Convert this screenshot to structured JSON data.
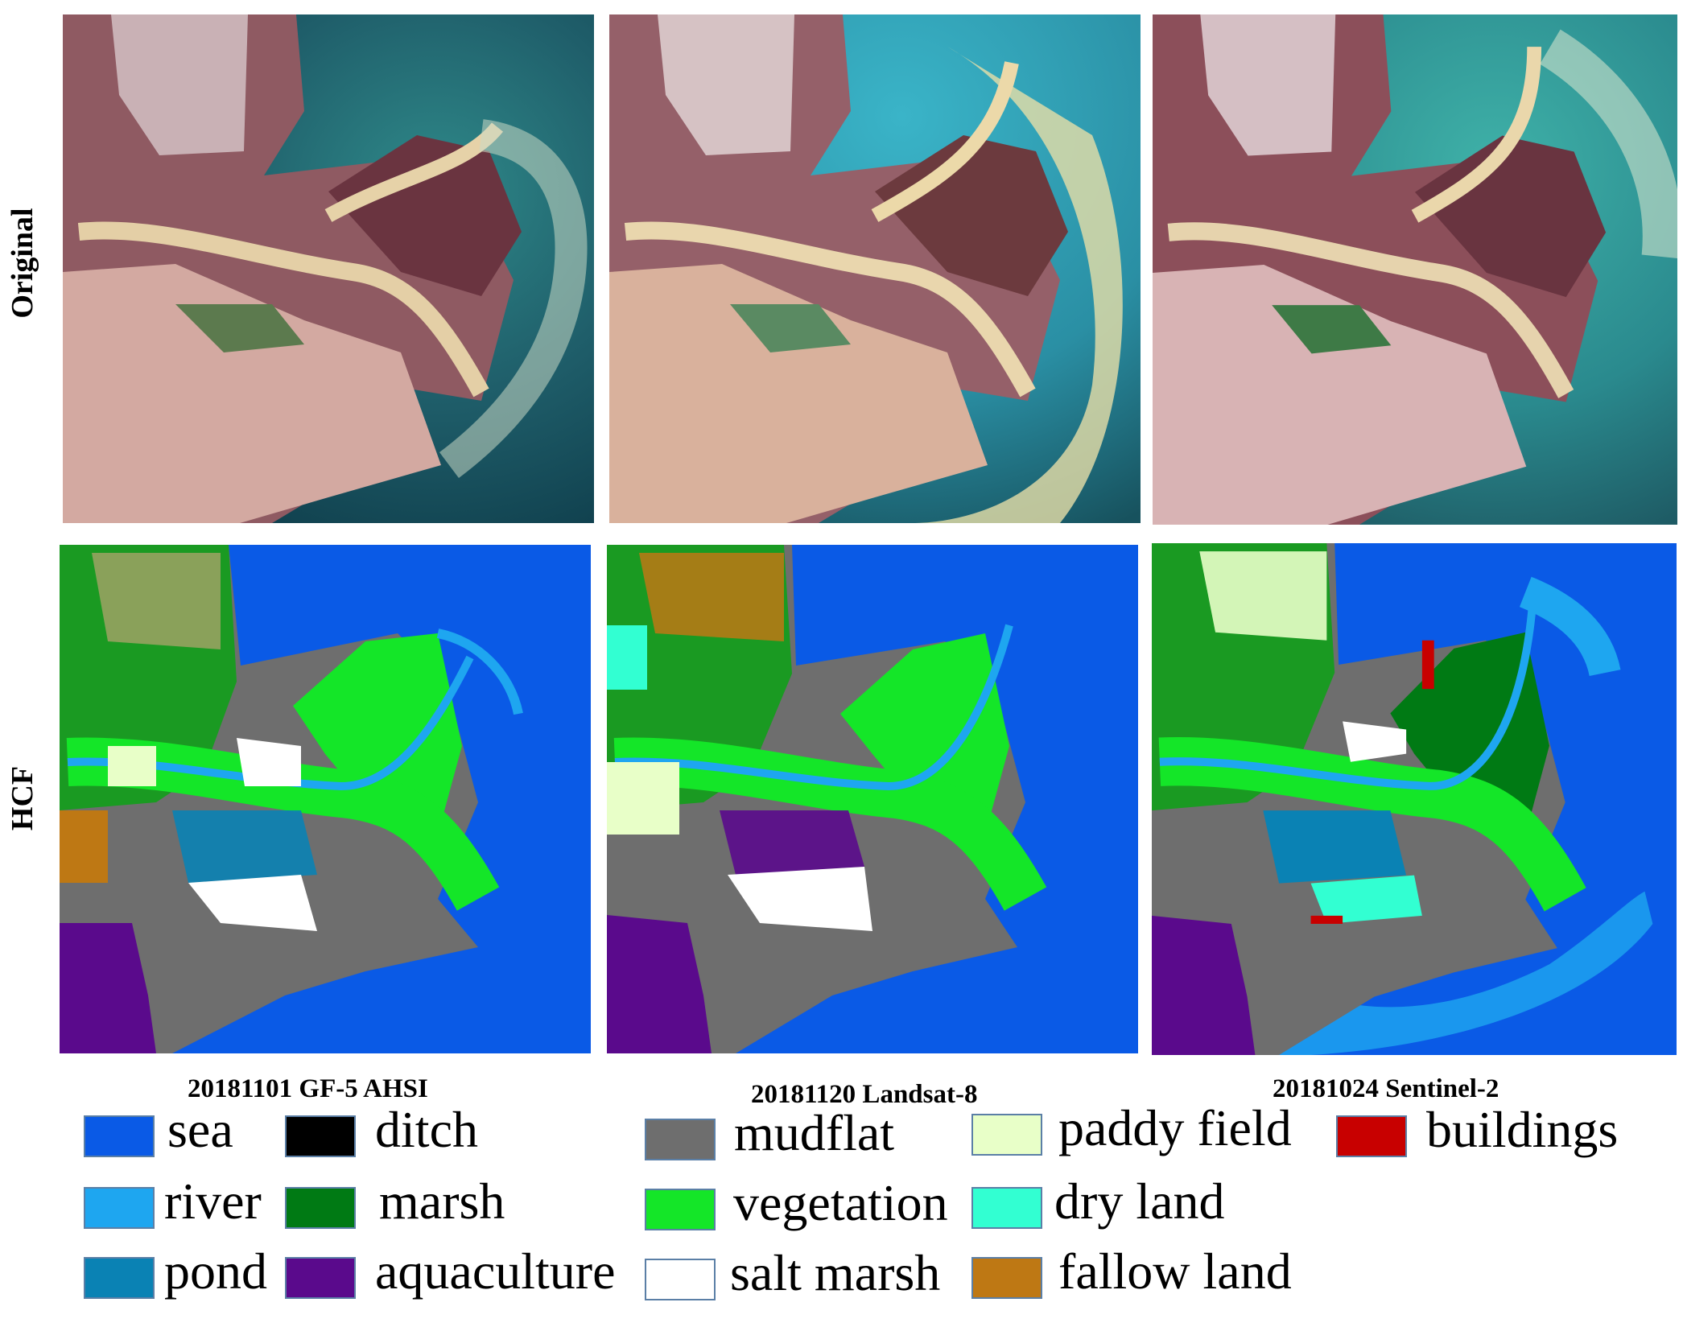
{
  "row_labels": {
    "original": "Original",
    "hcf": "HCF"
  },
  "captions": [
    {
      "text": "20181101 GF-5 AHSI"
    },
    {
      "text": "20181120 Landsat-8"
    },
    {
      "text": "20181024 Sentinel-2"
    }
  ],
  "legend": [
    {
      "label": "sea",
      "color": "#0a5ae6"
    },
    {
      "label": "ditch",
      "color": "#000000"
    },
    {
      "label": "mudflat",
      "color": "#6e6e6e"
    },
    {
      "label": "paddy field",
      "color": "#e8ffc8"
    },
    {
      "label": "buildings",
      "color": "#c80000"
    },
    {
      "label": "river",
      "color": "#1ea6f0"
    },
    {
      "label": "marsh",
      "color": "#007a14"
    },
    {
      "label": "vegetation",
      "color": "#14e628"
    },
    {
      "label": "dry land",
      "color": "#32ffd2"
    },
    {
      "label": "pond",
      "color": "#0a82b4"
    },
    {
      "label": "aquaculture",
      "color": "#5a0a8c"
    },
    {
      "label": "salt marsh",
      "color": "#ffffff"
    },
    {
      "label": "fallow land",
      "color": "#be7814"
    }
  ]
}
